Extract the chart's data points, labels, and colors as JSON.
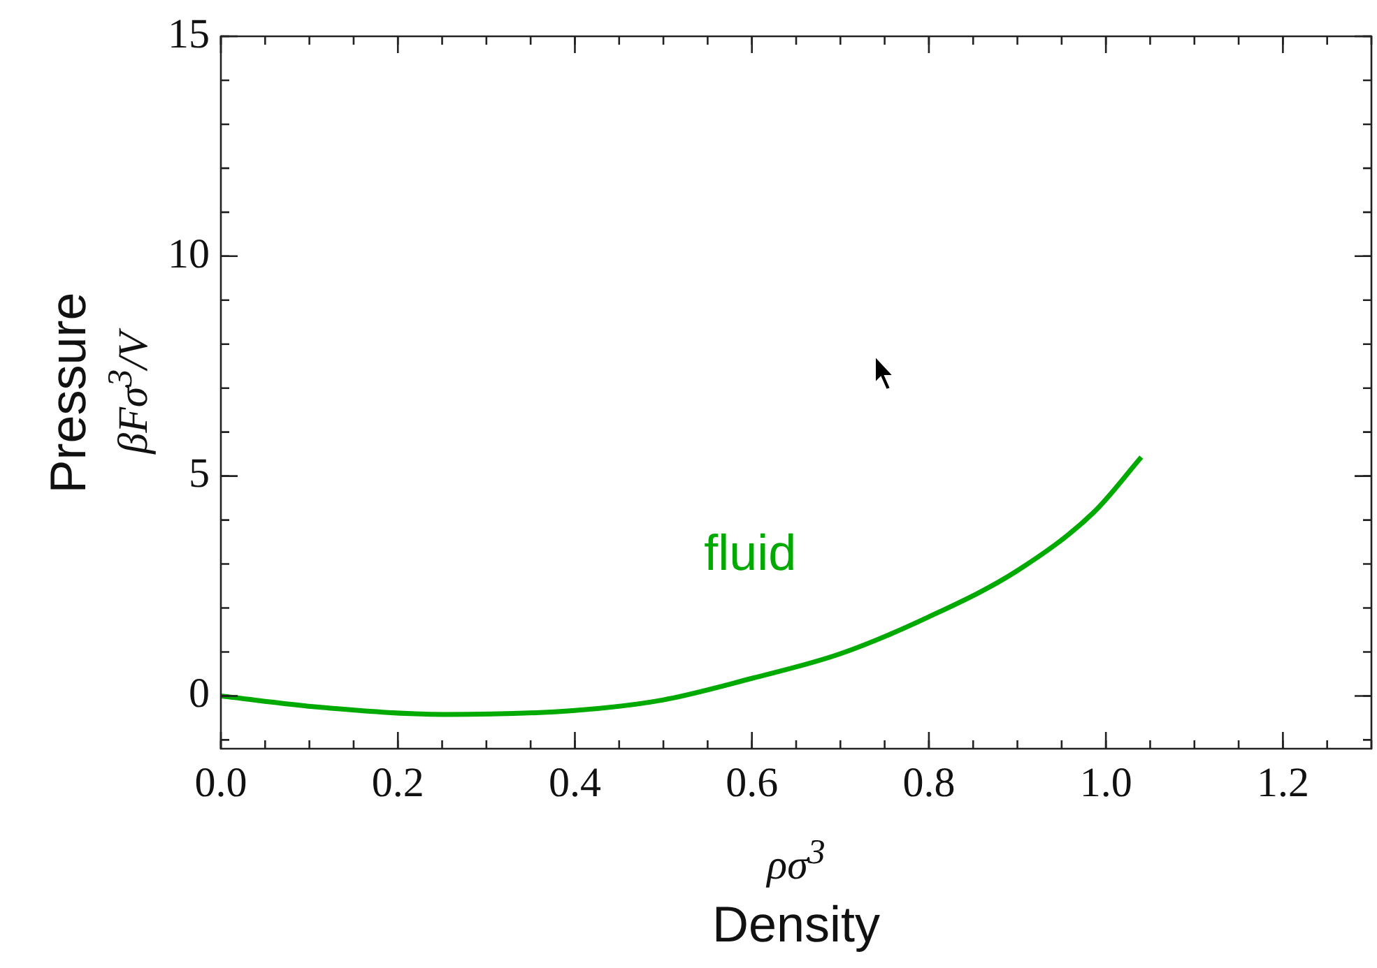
{
  "chart_data": {
    "type": "line",
    "xlabel": "ρσ$^{3}$\nDensity",
    "ylabel": "Pressure\nβFσ$^{3}$/V",
    "xlim": [
      0,
      1.3
    ],
    "ylim": [
      -1.2,
      15
    ],
    "xticks": [
      {
        "value": 0,
        "label": "0.0"
      },
      {
        "value": 0.2,
        "label": "0.2"
      },
      {
        "value": 0.4,
        "label": "0.4"
      },
      {
        "value": 0.6,
        "label": "0.6"
      },
      {
        "value": 0.8,
        "label": "0.8"
      },
      {
        "value": 1.0,
        "label": "1.0"
      },
      {
        "value": 1.2,
        "label": "1.2"
      }
    ],
    "yticks": [
      0,
      5,
      10,
      15
    ],
    "grid": false,
    "legend": false,
    "marker": "none",
    "line_style": "solid",
    "series": [
      {
        "name": "fluid",
        "color": "#00aa00",
        "x": [
          0,
          0.113,
          0.253,
          0.4,
          0.5,
          0.6,
          0.7,
          0.8,
          0.9,
          0.986,
          1.04
        ],
        "values": [
          0,
          -0.26,
          -0.42,
          -0.33,
          -0.09,
          0.4,
          0.96,
          1.8,
          2.85,
          4.17,
          5.43
        ]
      }
    ]
  }
}
